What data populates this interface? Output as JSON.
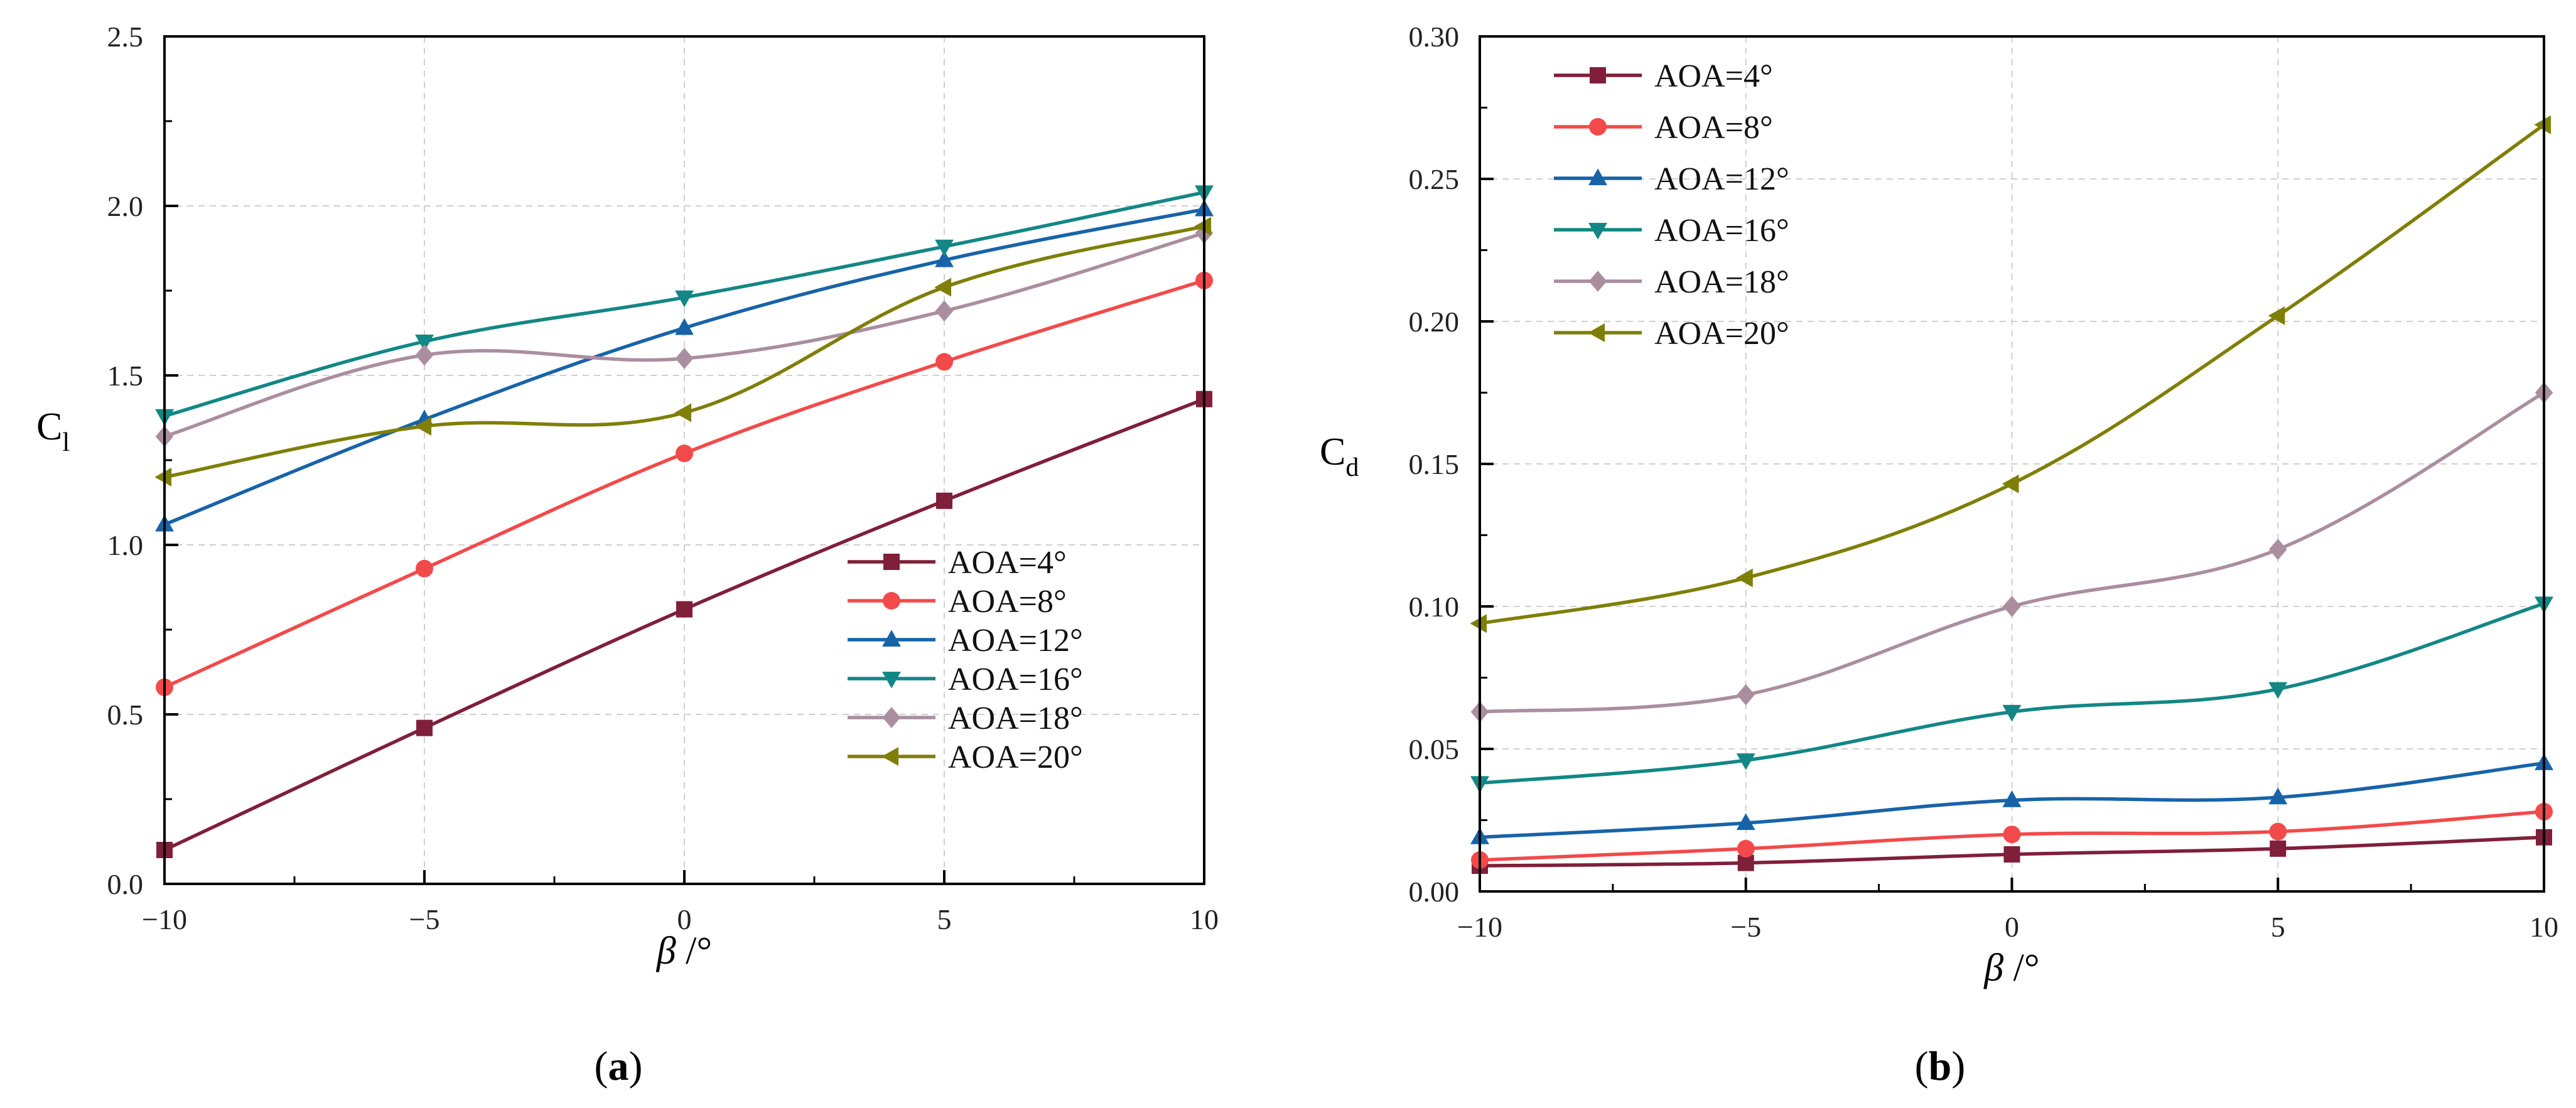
{
  "figure": {
    "colors": {
      "AOA=4°": "#7f1f3a",
      "AOA=8°": "#f24a4a",
      "AOA=12°": "#1863a8",
      "AOA=16°": "#138785",
      "AOA=18°": "#aa8e9f",
      "AOA=20°": "#7f7f08"
    }
  },
  "chart_data": [
    {
      "id": "a",
      "type": "line",
      "caption": "(a)",
      "xlabel_symbol": "β",
      "xlabel_unit": " /°",
      "ylabel_main": "C",
      "ylabel_sub": "l",
      "xlim": [
        -10,
        10
      ],
      "ylim": [
        0,
        2.5
      ],
      "x": [
        -10,
        -5,
        0,
        5,
        10
      ],
      "xticks": [
        -10,
        -5,
        0,
        5,
        10
      ],
      "xtick_labels": [
        "−10",
        "−5",
        "0",
        "5",
        "10"
      ],
      "yticks": [
        0,
        0.5,
        1.0,
        1.5,
        2.0,
        2.5
      ],
      "ytick_labels": [
        "0.0",
        "0.5",
        "1.0",
        "1.5",
        "2.0",
        "2.5"
      ],
      "grid": true,
      "legend_position": "lower-right",
      "series": [
        {
          "name": "AOA=4°",
          "marker": "square",
          "values": [
            0.1,
            0.46,
            0.81,
            1.13,
            1.43
          ]
        },
        {
          "name": "AOA=8°",
          "marker": "circle",
          "values": [
            0.58,
            0.93,
            1.27,
            1.54,
            1.78
          ]
        },
        {
          "name": "AOA=12°",
          "marker": "triangle-up",
          "values": [
            1.06,
            1.37,
            1.64,
            1.84,
            1.99
          ]
        },
        {
          "name": "AOA=16°",
          "marker": "triangle-down",
          "values": [
            1.38,
            1.6,
            1.73,
            1.88,
            2.04
          ]
        },
        {
          "name": "AOA=18°",
          "marker": "diamond",
          "values": [
            1.32,
            1.56,
            1.55,
            1.69,
            1.92
          ]
        },
        {
          "name": "AOA=20°",
          "marker": "triangle-left",
          "values": [
            1.2,
            1.35,
            1.39,
            1.76,
            1.94
          ]
        }
      ]
    },
    {
      "id": "b",
      "type": "line",
      "caption": "(b)",
      "xlabel_symbol": "β",
      "xlabel_unit": " /°",
      "ylabel_main": "C",
      "ylabel_sub": "d",
      "xlim": [
        -10,
        10
      ],
      "ylim": [
        0,
        0.3
      ],
      "x": [
        -10,
        -5,
        0,
        5,
        10
      ],
      "xticks": [
        -10,
        -5,
        0,
        5,
        10
      ],
      "xtick_labels": [
        "−10",
        "−5",
        "0",
        "5",
        "10"
      ],
      "yticks": [
        0,
        0.05,
        0.1,
        0.15,
        0.2,
        0.25,
        0.3
      ],
      "ytick_labels": [
        "0.00",
        "0.05",
        "0.10",
        "0.15",
        "0.20",
        "0.25",
        "0.30"
      ],
      "grid": true,
      "legend_position": "top-left",
      "series": [
        {
          "name": "AOA=4°",
          "marker": "square",
          "values": [
            0.009,
            0.01,
            0.013,
            0.015,
            0.019
          ]
        },
        {
          "name": "AOA=8°",
          "marker": "circle",
          "values": [
            0.011,
            0.015,
            0.02,
            0.021,
            0.028
          ]
        },
        {
          "name": "AOA=12°",
          "marker": "triangle-up",
          "values": [
            0.019,
            0.024,
            0.032,
            0.033,
            0.045
          ]
        },
        {
          "name": "AOA=16°",
          "marker": "triangle-down",
          "values": [
            0.038,
            0.046,
            0.063,
            0.071,
            0.101
          ]
        },
        {
          "name": "AOA=18°",
          "marker": "diamond",
          "values": [
            0.063,
            0.069,
            0.1,
            0.12,
            0.175
          ]
        },
        {
          "name": "AOA=20°",
          "marker": "triangle-left",
          "values": [
            0.094,
            0.11,
            0.143,
            0.202,
            0.269
          ]
        }
      ]
    }
  ]
}
